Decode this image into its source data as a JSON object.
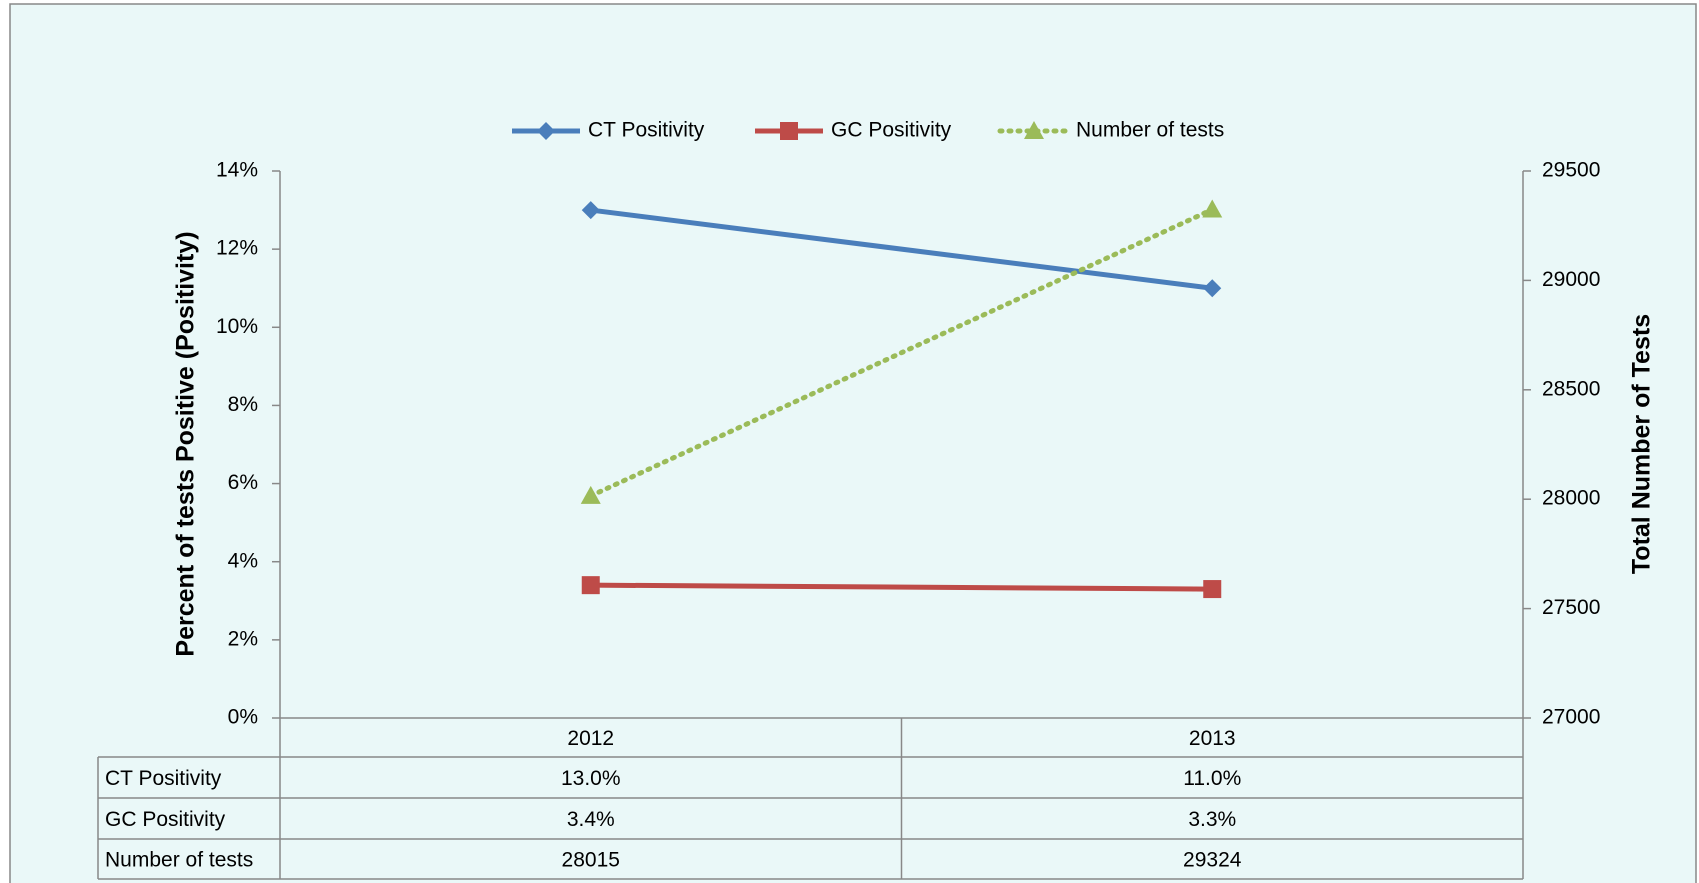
{
  "chart_data": {
    "type": "line",
    "categories": [
      "2012",
      "2013"
    ],
    "series": [
      {
        "name": "CT Positivity",
        "color": "#4a7ebb",
        "marker": "diamond",
        "values": [
          13.0,
          11.0
        ],
        "value_labels": [
          "13.0%",
          "11.0%"
        ]
      },
      {
        "name": "GC Positivity",
        "color": "#be4b48",
        "marker": "square",
        "values": [
          3.4,
          3.3
        ],
        "value_labels": [
          "3.4%",
          "3.3%"
        ]
      },
      {
        "name": "Number of tests",
        "color": "#9bbb59",
        "marker": "triangle",
        "dash": "dotted",
        "axis": "y2",
        "values": [
          28015,
          29324
        ]
      }
    ],
    "ylabel": "Percent of tests  Positive (Positivity)",
    "y2label": "Total Number of Tests",
    "ylim": [
      0,
      14
    ],
    "yticks": [
      {
        "value": 0,
        "label": "0%"
      },
      {
        "value": 2,
        "label": "2%"
      },
      {
        "value": 4,
        "label": "4%"
      },
      {
        "value": 6,
        "label": "6%"
      },
      {
        "value": 8,
        "label": "8%"
      },
      {
        "value": 10,
        "label": "10%"
      },
      {
        "value": 12,
        "label": "12%"
      },
      {
        "value": 14,
        "label": "14%"
      }
    ],
    "y2lim": [
      27000,
      29500
    ],
    "y2ticks": [
      27000,
      27500,
      28000,
      28500,
      29000,
      29500
    ],
    "legend": "top",
    "data_table": true
  }
}
